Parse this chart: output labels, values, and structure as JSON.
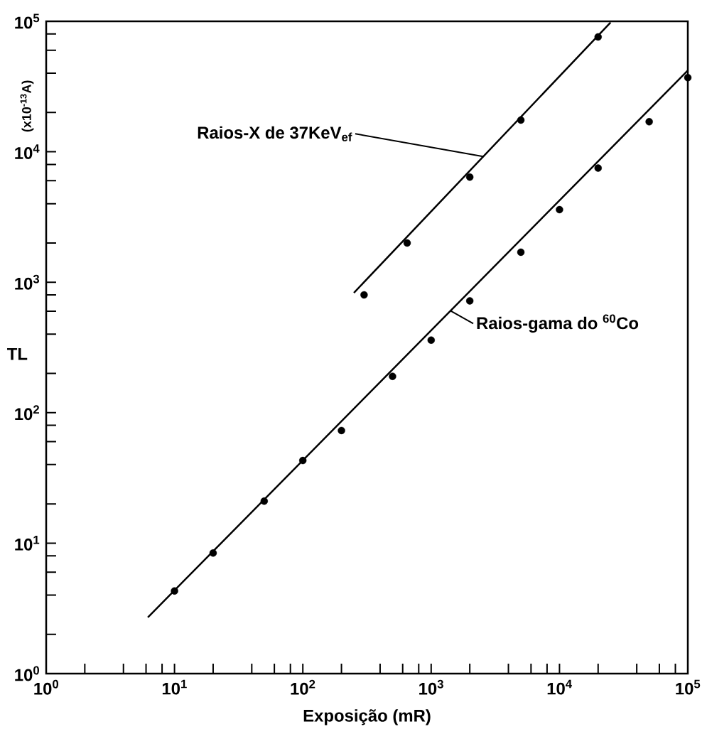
{
  "chart_data": {
    "type": "scatter",
    "xlabel": "Exposição (mR)",
    "ylabel": "TL",
    "log": "xy",
    "line_style": "solid",
    "xlim": [
      1,
      100000
    ],
    "ylim": [
      1,
      100000
    ],
    "xticks": [
      {
        "value": 1,
        "label": "10$^{0}$"
      },
      {
        "value": 2,
        "label": null
      },
      {
        "value": 4,
        "label": null
      },
      {
        "value": 6,
        "label": null
      },
      {
        "value": 8,
        "label": null
      },
      {
        "value": 10,
        "label": "10$^{1}$"
      },
      {
        "value": 20,
        "label": null
      },
      {
        "value": 40,
        "label": null
      },
      {
        "value": 60,
        "label": null
      },
      {
        "value": 80,
        "label": null
      },
      {
        "value": 100,
        "label": "10$^{2}$"
      },
      {
        "value": 200,
        "label": null
      },
      {
        "value": 400,
        "label": null
      },
      {
        "value": 600,
        "label": null
      },
      {
        "value": 800,
        "label": null
      },
      {
        "value": 1000,
        "label": "10$^{3}$"
      },
      {
        "value": 2000,
        "label": null
      },
      {
        "value": 4000,
        "label": null
      },
      {
        "value": 6000,
        "label": null
      },
      {
        "value": 8000,
        "label": null
      },
      {
        "value": 10000,
        "label": "10$^{4}$"
      },
      {
        "value": 20000,
        "label": null
      },
      {
        "value": 40000,
        "label": null
      },
      {
        "value": 60000,
        "label": null
      },
      {
        "value": 80000,
        "label": null
      },
      {
        "value": 100000,
        "label": "10$^{5}$"
      }
    ],
    "yticks": [
      {
        "value": 1,
        "label": "10$^{0}$"
      },
      {
        "value": 2,
        "label": null
      },
      {
        "value": 4,
        "label": null
      },
      {
        "value": 6,
        "label": null
      },
      {
        "value": 8,
        "label": null
      },
      {
        "value": 10,
        "label": "10$^{1}$"
      },
      {
        "value": 20,
        "label": null
      },
      {
        "value": 40,
        "label": null
      },
      {
        "value": 60,
        "label": null
      },
      {
        "value": 80,
        "label": null
      },
      {
        "value": 100,
        "label": "10$^{2}$"
      },
      {
        "value": 200,
        "label": null
      },
      {
        "value": 400,
        "label": null
      },
      {
        "value": 600,
        "label": null
      },
      {
        "value": 800,
        "label": null
      },
      {
        "value": 1000,
        "label": "10$^{3}$"
      },
      {
        "value": 2000,
        "label": null
      },
      {
        "value": 4000,
        "label": null
      },
      {
        "value": 6000,
        "label": null
      },
      {
        "value": 8000,
        "label": null
      },
      {
        "value": 10000,
        "label": "10$^{4}$"
      },
      {
        "value": 20000,
        "label": null
      },
      {
        "value": 40000,
        "label": null
      },
      {
        "value": 60000,
        "label": null
      },
      {
        "value": 80000,
        "label": null
      },
      {
        "value": 100000,
        "label": "10$^{5}$"
      }
    ],
    "series": [
      {
        "type": "scatter",
        "marker": "circle",
        "color": "#000000",
        "x": [
          300,
          650,
          2000,
          5000,
          20000
        ],
        "values": [
          800,
          2000,
          6400,
          17500,
          76000
        ]
      },
      {
        "type": "line",
        "marker": "none",
        "color": "#000000",
        "x": [
          250,
          25000
        ],
        "values": [
          830,
          98000
        ]
      },
      {
        "type": "scatter",
        "marker": "circle",
        "color": "#000000",
        "x": [
          10,
          20,
          50,
          100,
          200,
          500,
          1000,
          2000,
          5000,
          10000,
          20000,
          50000,
          100000
        ],
        "values": [
          4.3,
          8.4,
          21,
          43,
          73,
          190,
          360,
          720,
          1700,
          3600,
          7500,
          17000,
          37000
        ]
      },
      {
        "type": "line",
        "marker": "none",
        "color": "#000000",
        "x": [
          6.2,
          100000
        ],
        "values": [
          2.7,
          42000
        ]
      }
    ],
    "annotations": [
      {
        "text": "Raios-X de 37KeV$_{ef}$",
        "x": 2540,
        "y": 9200
      },
      {
        "text": "Raios-gama do $^{60}$Co",
        "x": 1415,
        "y": 605
      },
      "(x10$^{-13}$A)"
    ]
  }
}
